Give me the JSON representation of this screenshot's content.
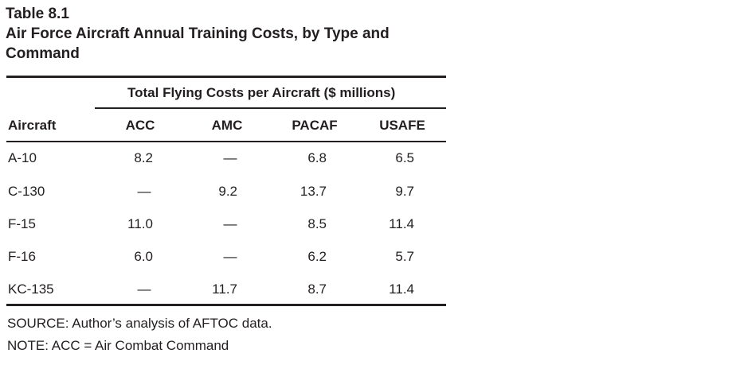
{
  "title": {
    "number": "Table 8.1",
    "text": "Air Force Aircraft Annual Training Costs, by Type and Command"
  },
  "table": {
    "spanner": "Total Flying Costs per Aircraft ($ millions)",
    "row_header": "Aircraft",
    "columns": [
      "ACC",
      "AMC",
      "PACAF",
      "USAFE"
    ],
    "rows": [
      {
        "aircraft": "A-10",
        "values": [
          "8.2",
          "—",
          "6.8",
          "6.5"
        ]
      },
      {
        "aircraft": "C-130",
        "values": [
          "—",
          "9.2",
          "13.7",
          "9.7"
        ]
      },
      {
        "aircraft": "F-15",
        "values": [
          "11.0",
          "—",
          "8.5",
          "11.4"
        ]
      },
      {
        "aircraft": "F-16",
        "values": [
          "6.0",
          "—",
          "6.2",
          "5.7"
        ]
      },
      {
        "aircraft": "KC-135",
        "values": [
          "—",
          "11.7",
          "8.7",
          "11.4"
        ]
      }
    ]
  },
  "footnotes": {
    "source": "SOURCE: Author’s analysis of AFTOC data.",
    "note": "NOTE: ACC = Air Combat Command"
  }
}
